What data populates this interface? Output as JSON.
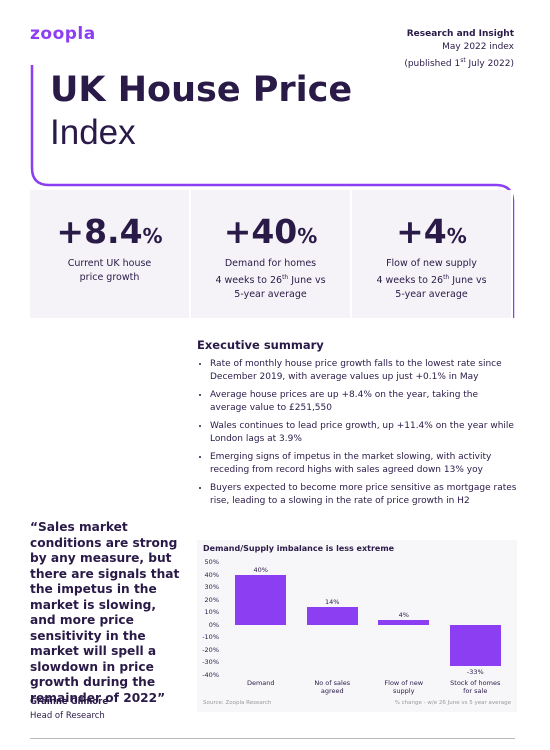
{
  "header": {
    "logo": "zoopla",
    "label": "Research and Insight",
    "index": "May 2022 index",
    "published": [
      "(published 1",
      "st",
      " July 2022)"
    ]
  },
  "title": {
    "line1": "UK House Price",
    "line2": "Index"
  },
  "stats": [
    {
      "value": "+8.4",
      "unit": "%",
      "label": [
        "Current UK house",
        "price growth"
      ]
    },
    {
      "value": "+40",
      "unit": "%",
      "label": [
        "Demand for homes",
        [
          "4 weeks to 26",
          "th",
          " June vs"
        ],
        "5-year average"
      ]
    },
    {
      "value": "+4",
      "unit": "%",
      "label": [
        "Flow of new supply",
        [
          "4 weeks to 26",
          "th",
          " June vs"
        ],
        "5-year average"
      ]
    }
  ],
  "summary": {
    "heading": "Executive summary",
    "bullets": [
      "Rate of monthly house price growth falls to the lowest rate since December 2019, with average values up just +0.1% in May",
      "Average house prices are up +8.4% on the year, taking the average value to £251,550",
      "Wales continues to lead price growth, up +11.4% on the year while London lags at 3.9%",
      "Emerging signs of impetus in the market slowing, with activity receding from record highs with sales agreed down 13% yoy",
      "Buyers expected to become more price sensitive as mortgage rates rise, leading to a slowing in the rate of price growth in H2"
    ]
  },
  "quote": {
    "text": "“Sales market conditions are strong by any measure, but there are signals that the impetus in the market is slowing, and more price sensitivity in the market will spell a slowdown in price growth during the remainder of 2022”",
    "author": "Gráinne Gilmore",
    "role": "Head of Research"
  },
  "chart_data": {
    "type": "bar",
    "title": "Demand/Supply imbalance is less extreme",
    "categories": [
      "Demand",
      "No of sales agreed",
      "Flow of new supply",
      "Stock of homes for sale"
    ],
    "values": [
      40,
      14,
      4,
      -33
    ],
    "value_labels": [
      "40%",
      "14%",
      "4%",
      "-33%"
    ],
    "color": "#8c3ff2",
    "ylim": [
      -40,
      50
    ],
    "yticks": [
      {
        "value": 50,
        "label": "50%"
      },
      {
        "value": 40,
        "label": "40%"
      },
      {
        "value": 30,
        "label": "30%"
      },
      {
        "value": 20,
        "label": "20%"
      },
      {
        "value": 10,
        "label": "10%"
      },
      {
        "value": 0,
        "label": "0%"
      },
      {
        "value": -10,
        "label": "-10%"
      },
      {
        "value": -20,
        "label": "-20%"
      },
      {
        "value": -30,
        "label": "-30%"
      },
      {
        "value": -40,
        "label": "-40%"
      }
    ],
    "source": "Source: Zoopla Research",
    "note": "% change - w/e 26 June vs 5 year average"
  }
}
